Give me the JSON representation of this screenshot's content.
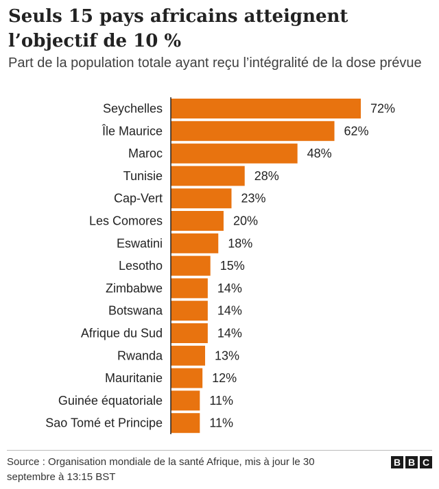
{
  "title": "Seuls 15 pays africains atteignent l’objectif de 10 %",
  "subtitle": "Part de la population totale ayant reçu l’intégralité de la dose prévue",
  "source": "Source : Organisation mondiale de la santé Afrique, mis à jour le 30 septembre à 13:15 BST",
  "logo": [
    "B",
    "B",
    "C"
  ],
  "colors": {
    "bar": "#e8730f",
    "axis": "#222222",
    "text": "#222222"
  },
  "chart_data": {
    "type": "bar",
    "orientation": "horizontal",
    "categories": [
      "Seychelles",
      "Île Maurice",
      "Maroc",
      "Tunisie",
      "Cap-Vert",
      "Les Comores",
      "Eswatini",
      "Lesotho",
      "Zimbabwe",
      "Botswana",
      "Afrique du Sud",
      "Rwanda",
      "Mauritanie",
      "Guinée équatoriale",
      "Sao Tomé et Principe"
    ],
    "values": [
      72,
      62,
      48,
      28,
      23,
      20,
      18,
      15,
      14,
      14,
      14,
      13,
      12,
      11,
      11
    ],
    "value_labels": [
      "72%",
      "62%",
      "48%",
      "28%",
      "23%",
      "20%",
      "18%",
      "15%",
      "14%",
      "14%",
      "14%",
      "13%",
      "12%",
      "11%",
      "11%"
    ],
    "xlim": [
      0,
      72
    ],
    "grid": false,
    "legend": "none"
  }
}
